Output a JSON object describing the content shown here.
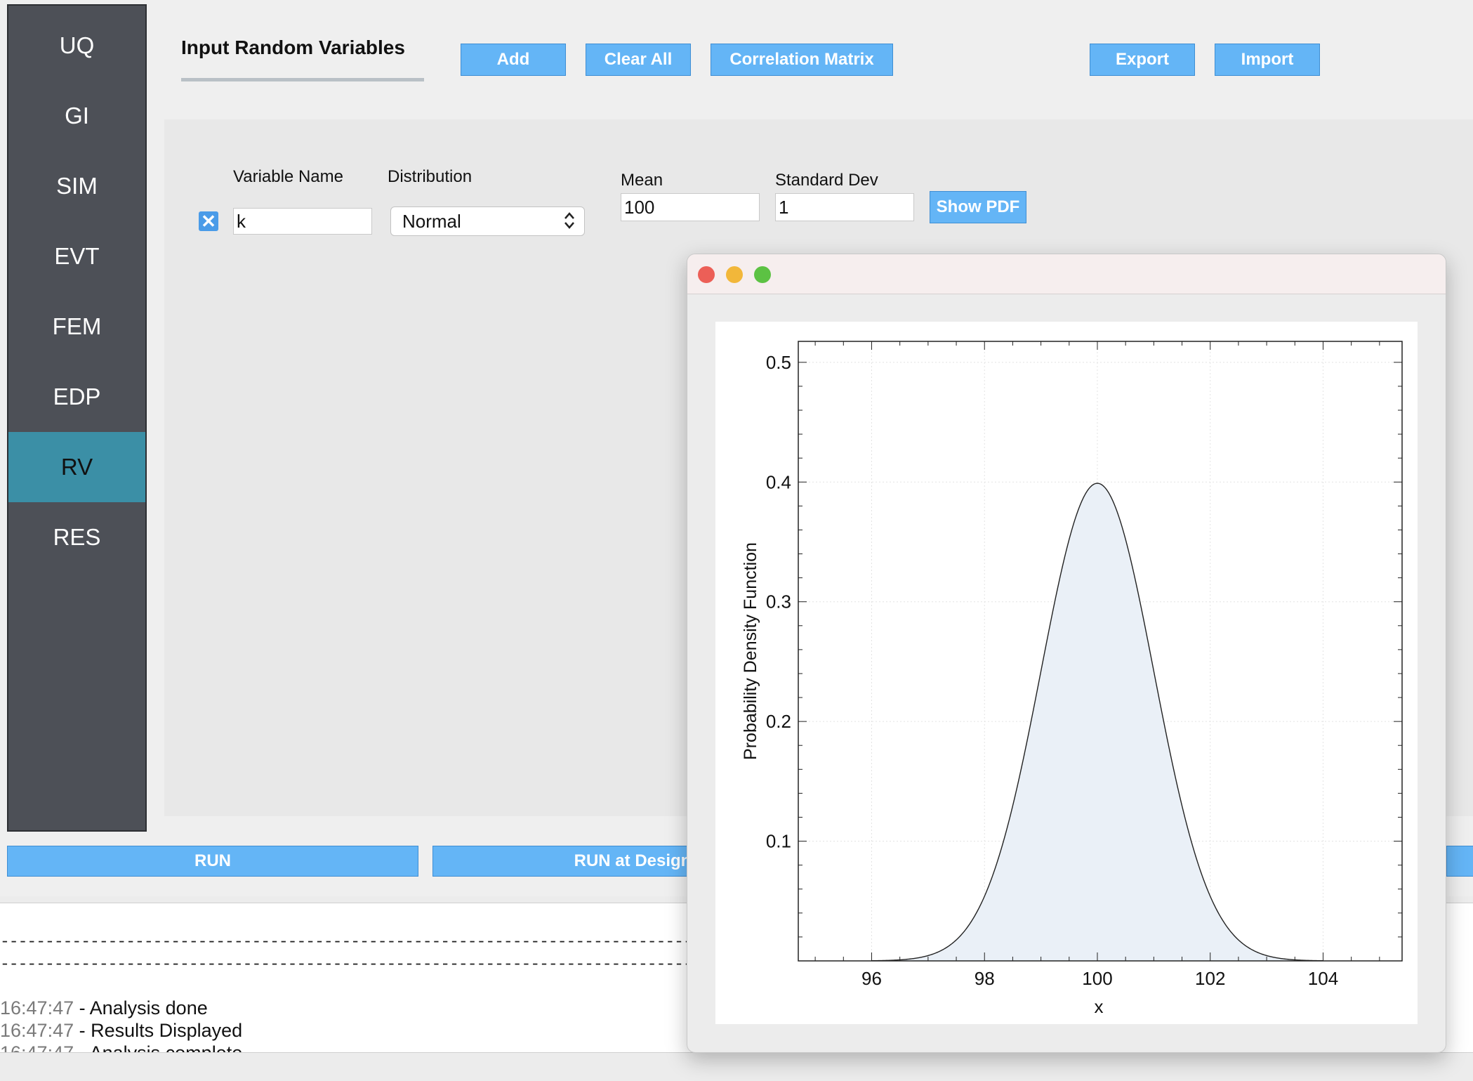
{
  "sidebar": {
    "items": [
      {
        "label": "UQ",
        "active": false
      },
      {
        "label": "GI",
        "active": false
      },
      {
        "label": "SIM",
        "active": false
      },
      {
        "label": "EVT",
        "active": false
      },
      {
        "label": "FEM",
        "active": false
      },
      {
        "label": "EDP",
        "active": false
      },
      {
        "label": "RV",
        "active": true
      },
      {
        "label": "RES",
        "active": false
      }
    ]
  },
  "header": {
    "title": "Input Random Variables",
    "add_label": "Add",
    "clear_all_label": "Clear All",
    "correlation_label": "Correlation Matrix",
    "export_label": "Export",
    "import_label": "Import"
  },
  "variable": {
    "name_header": "Variable Name",
    "distribution_header": "Distribution",
    "mean_label": "Mean",
    "std_label": "Standard Dev",
    "name_value": "k",
    "distribution_value": "Normal",
    "mean_value": "100",
    "std_value": "1",
    "show_pdf_label": "Show PDF"
  },
  "run": {
    "run_label": "RUN",
    "run_design_label": "RUN at DesignS"
  },
  "console": {
    "separator": "-------------------------------------------------------------------------------",
    "lines": [
      {
        "time": "16:47:47",
        "sep": " - ",
        "msg": "Analysis done"
      },
      {
        "time": "16:47:47",
        "sep": " - ",
        "msg": "Results Displayed"
      },
      {
        "time": "16:47:47",
        "sep": " - ",
        "msg": "Analysis complete"
      }
    ]
  },
  "colors": {
    "sidebar_bg": "#4d5057",
    "sidebar_active": "#3b8fa6",
    "button_blue": "#64b5f6",
    "curve_fill": "#eaf0f7"
  },
  "chart_data": {
    "type": "area",
    "distribution": "normal",
    "mean": 100,
    "std": 1,
    "x_range": [
      94.7,
      105.4
    ],
    "y_range": [
      0,
      0.5175
    ],
    "x_ticks": [
      96,
      98,
      100,
      102,
      104
    ],
    "y_ticks": [
      0.1,
      0.2,
      0.3,
      0.4,
      0.5
    ],
    "x_tick_labels": [
      "96",
      "98",
      "100",
      "102",
      "104"
    ],
    "y_tick_labels": [
      "0.1",
      "0.2",
      "0.3",
      "0.4",
      "0.5"
    ],
    "xlabel": "x",
    "ylabel": "Probability Density Function",
    "grid": true,
    "peak": {
      "x": 100,
      "y": 0.399
    }
  }
}
